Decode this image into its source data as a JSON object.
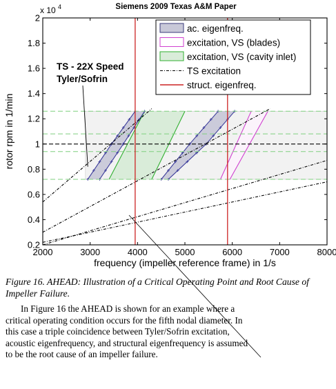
{
  "paper": {
    "header": "Siemens 2009 Texas A&M Paper",
    "caption": "Figure 16. AHEAD: Illustration of a Critical Operating Point and Root Cause of Impeller Failure.",
    "paragraph_lines": [
      "In Figure 16 the AHEAD is shown for an example where a",
      "critical operating condition occurs for the fifth nodal diameter. In",
      "this case a triple coincidence between Tyler/Sofrin excitation,",
      "acoustic eigenfrequency, and structural eigenfrequency is assumed",
      "to be the root cause of an impeller failure."
    ]
  },
  "chart_data": {
    "type": "line",
    "title": "Siemens 2009 Texas A&M Paper",
    "xlabel": "frequency (impeller reference frame) in 1/s",
    "ylabel": "rotor rpm in 1/min",
    "xlim": [
      2000,
      8000
    ],
    "ylim": [
      0.2,
      2.0
    ],
    "y_multiplier_label": "x 10",
    "y_multiplier_exp": "4",
    "xticks": [
      "2000",
      "3000",
      "4000",
      "5000",
      "6000",
      "7000",
      "8000"
    ],
    "yticks": [
      "0.2",
      "0.4",
      "0.6",
      "0.8",
      "1",
      "1.2",
      "1.4",
      "1.6",
      "1.8",
      "2"
    ],
    "grid": false,
    "legend_position": "top-right",
    "legend": [
      {
        "label": "ac. eigenfreq.",
        "style": "patch",
        "fill": "#c8c8d8",
        "stroke": "#3a3a7a"
      },
      {
        "label": "excitation, VS (blades)",
        "style": "patch",
        "fill": "#ffffff",
        "stroke": "#d040d0"
      },
      {
        "label": "excitation, VS (cavity inlet)",
        "style": "patch",
        "fill": "#d9ecd9",
        "stroke": "#30b030"
      },
      {
        "label": "TS excitation",
        "style": "dashdot",
        "color": "#000000"
      },
      {
        "label": "struct. eigenfreq.",
        "style": "line",
        "color": "#cc2222"
      }
    ],
    "annotation": {
      "line1": "TS - 22X Speed",
      "line2": "Tyler/Sofrin"
    },
    "speed_range_dashed": [
      0.72,
      0.94,
      1.08,
      1.26
    ],
    "speed_range_black_dashed": [
      1.0
    ],
    "struct_eigenfreq_x": [
      3950,
      5900
    ],
    "ts_lines": [
      {
        "x": [
          2000,
          4300
        ],
        "y": [
          0.54,
          1.28
        ]
      },
      {
        "x": [
          2000,
          6800
        ],
        "y": [
          0.3,
          1.28
        ]
      },
      {
        "x": [
          2000,
          8000
        ],
        "y": [
          0.22,
          0.7
        ]
      },
      {
        "x": [
          2000,
          8000
        ],
        "y": [
          0.2,
          0.87
        ]
      }
    ],
    "ac_eigenfreq_regions": [
      {
        "left": [
          [
            2950,
            0.72
          ],
          [
            3450,
            1.0
          ],
          [
            3950,
            1.26
          ]
        ],
        "right": [
          [
            3200,
            0.72
          ],
          [
            3700,
            1.0
          ],
          [
            4150,
            1.26
          ]
        ]
      },
      {
        "left": [
          [
            4500,
            0.72
          ],
          [
            5100,
            1.0
          ],
          [
            5700,
            1.26
          ]
        ],
        "right": [
          [
            4650,
            0.72
          ],
          [
            5450,
            1.0
          ],
          [
            6050,
            1.26
          ]
        ]
      }
    ],
    "cavity_inlet_region": {
      "left": [
        [
          3400,
          0.72
        ],
        [
          4150,
          1.26
        ]
      ],
      "right": [
        [
          4300,
          0.72
        ],
        [
          5000,
          1.26
        ]
      ]
    },
    "blades_region": {
      "left": [
        [
          5750,
          0.72
        ],
        [
          6400,
          1.26
        ]
      ],
      "right": [
        [
          5950,
          0.72
        ],
        [
          6750,
          1.26
        ]
      ]
    },
    "light_band": {
      "xmin": 2900,
      "xmax": 8000,
      "ymin": 0.72,
      "ymax": 1.26
    }
  },
  "colors": {
    "accent_red": "#cc2222",
    "green": "#30b030",
    "magenta": "#d040d0",
    "blue_edge": "#3a3a9a"
  }
}
